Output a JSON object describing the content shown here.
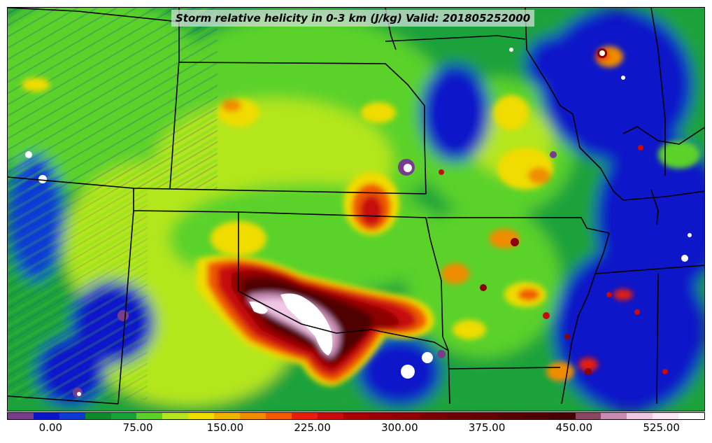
{
  "title": "Storm relative helicity in 0-3 km (J/kg) Valid: 201805252000",
  "map": {
    "field": "Storm relative helicity in 0-3 km",
    "units": "J/kg",
    "valid_time": "201805252000",
    "region": "Central United States",
    "background_colors": {
      "blue": "#0a14c8",
      "dark_green": "#1aa23a",
      "light_green": "#5ad22a",
      "yellow_green": "#b4e61e",
      "yellow": "#f0dc00",
      "orange": "#f08c00",
      "red": "#e61e0a",
      "dark_red": "#8c0000",
      "maroon": "#500000",
      "white": "#ffffff",
      "purple": "#783c8c"
    }
  },
  "colorbar": {
    "colors": [
      "#783c8c",
      "#0a14c8",
      "#0a3cd2",
      "#0a8c28",
      "#1aa23a",
      "#5ad22a",
      "#b4e61e",
      "#f0dc00",
      "#f0b400",
      "#f08c00",
      "#f05a00",
      "#e61e0a",
      "#c80a0a",
      "#aa0000",
      "#960000",
      "#8c0000",
      "#780000",
      "#6e0000",
      "#640000",
      "#5a0000",
      "#500000",
      "#460000",
      "#8c4664",
      "#c88cb4",
      "#f0c8e6",
      "#fae6f5",
      "#ffffff"
    ],
    "tick_labels": [
      "0.00",
      "75.00",
      "150.00",
      "225.00",
      "300.00",
      "375.00",
      "450.00",
      "525.00"
    ],
    "tick_values": [
      0,
      75,
      150,
      225,
      300,
      375,
      450,
      525
    ],
    "range": [
      -37.5,
      562.5
    ]
  }
}
